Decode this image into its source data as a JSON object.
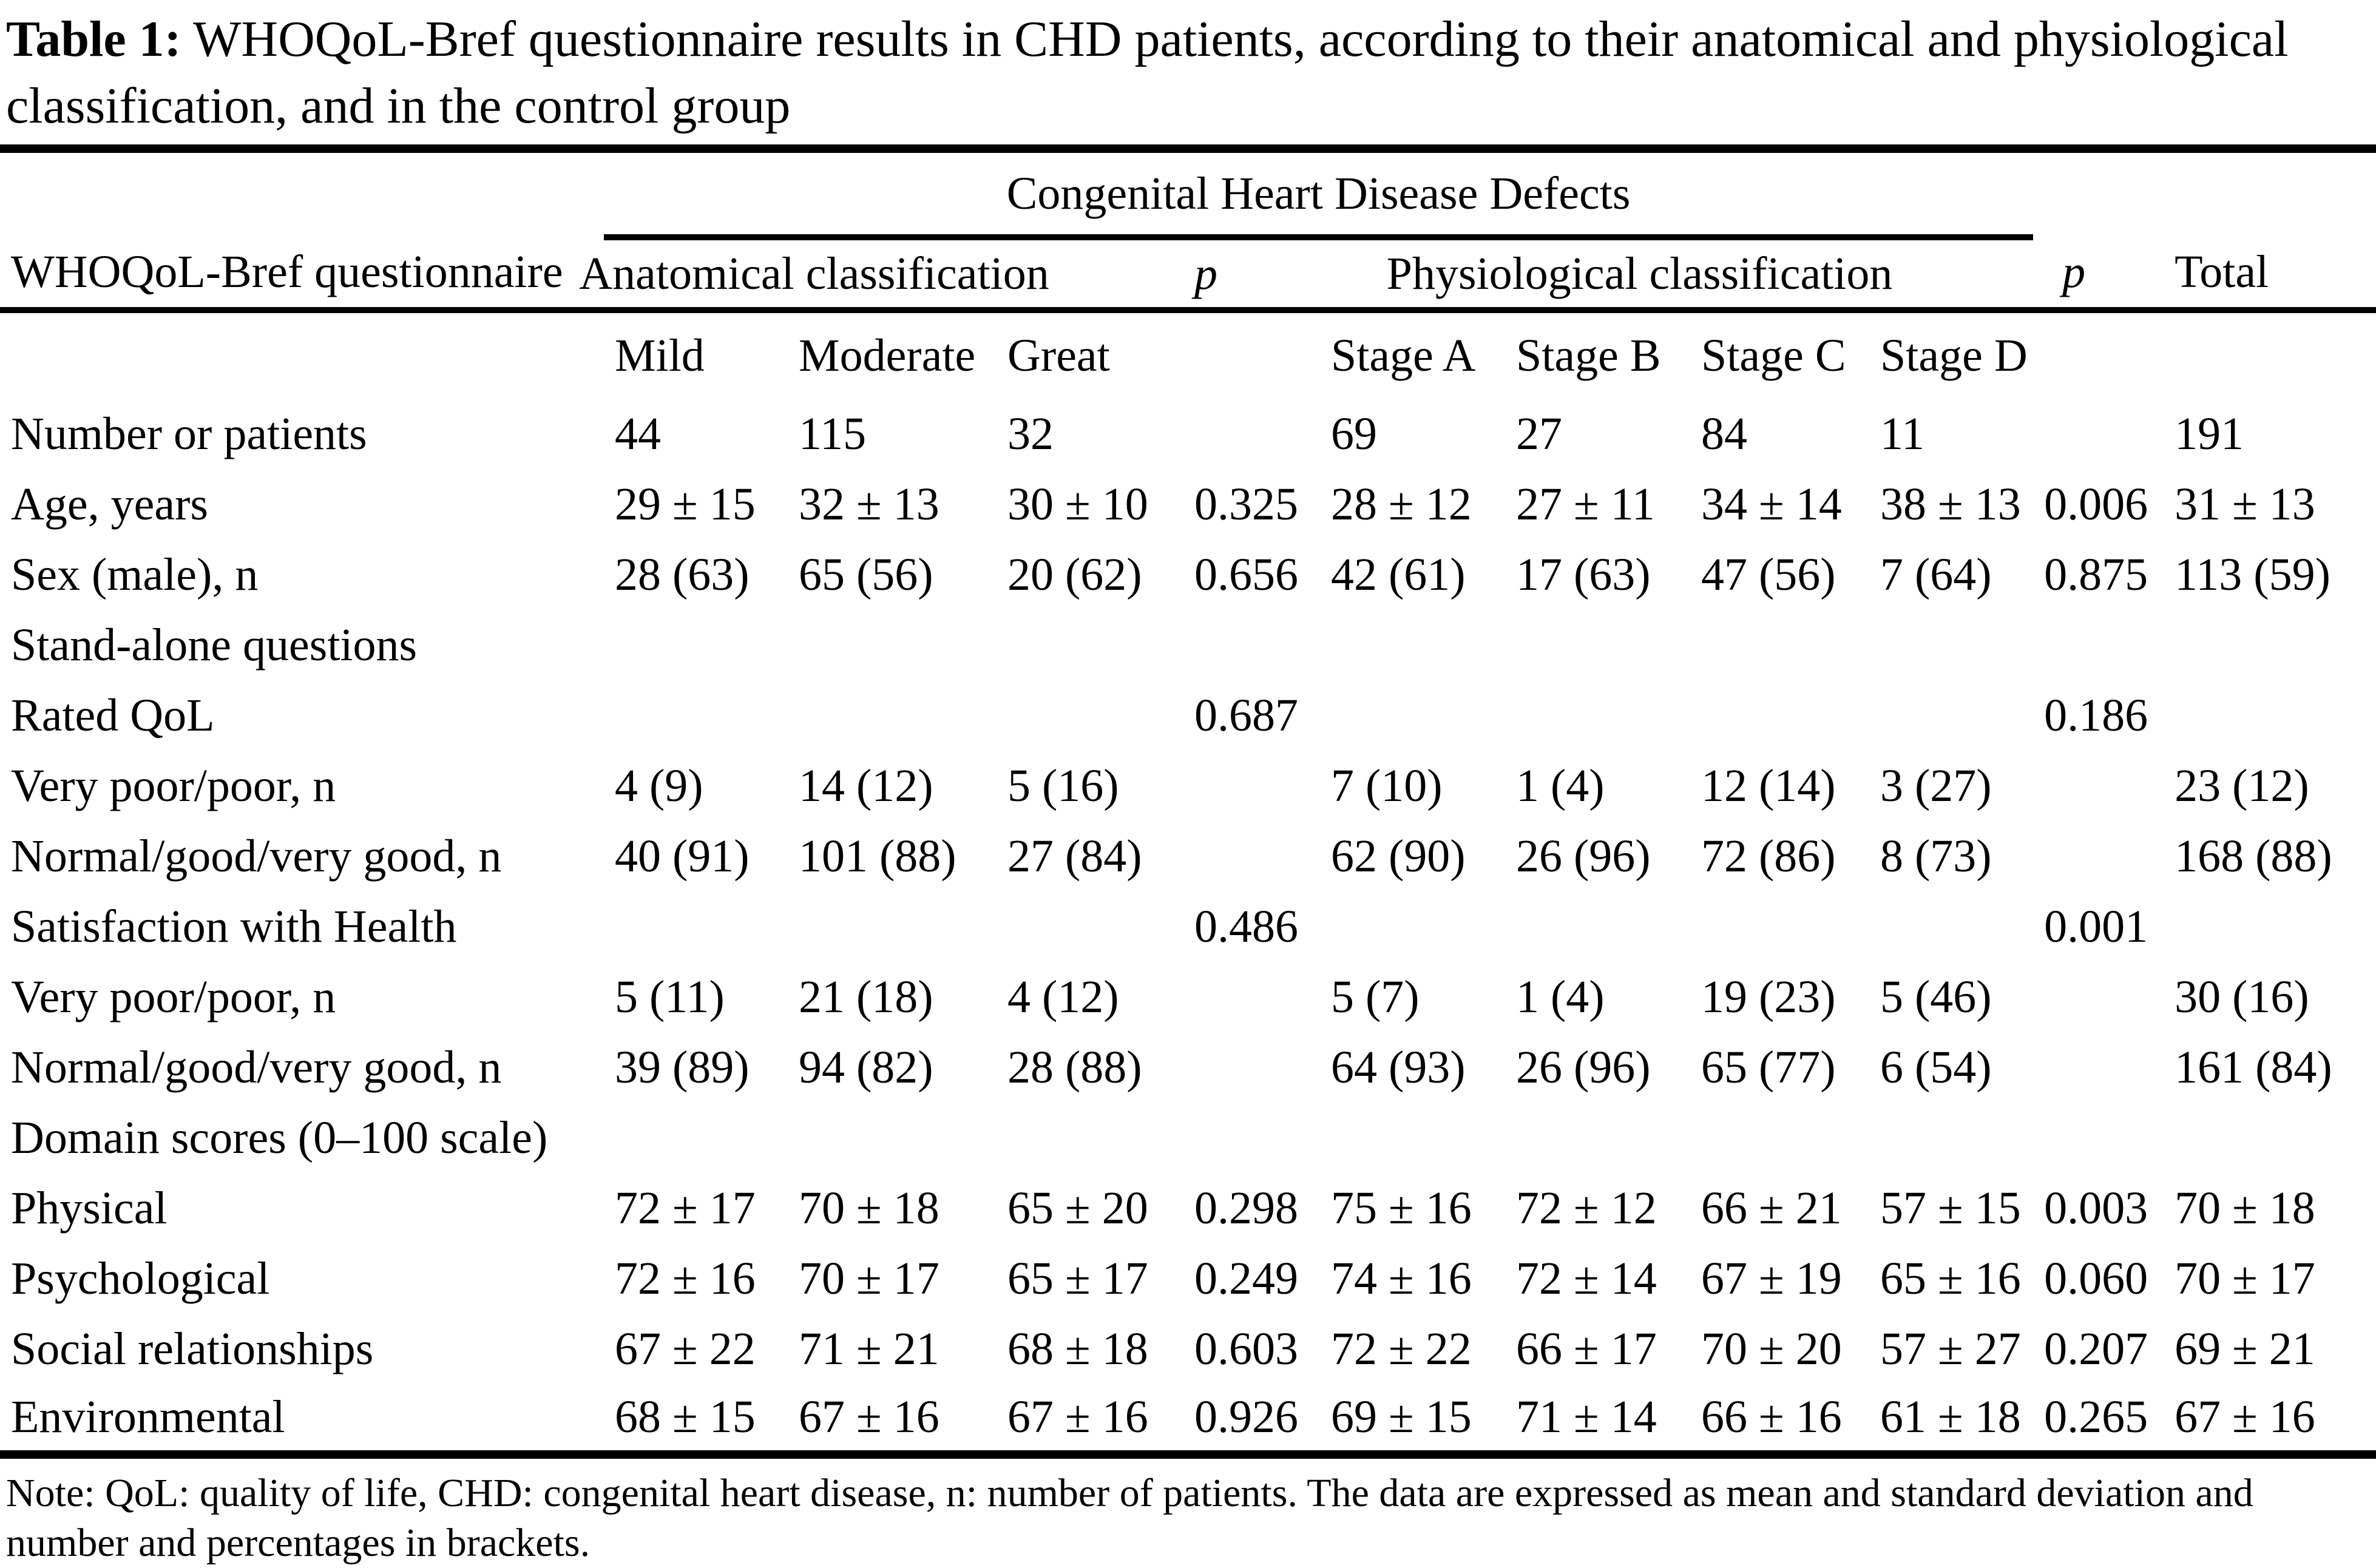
{
  "title": {
    "label": "Table 1:",
    "text": "WHOQoL-Bref questionnaire results in CHD patients, according to their anatomical and physiological classification, and in the control group"
  },
  "table": {
    "group_header": "Congenital Heart Disease Defects",
    "columns": {
      "stub": "WHOQoL-Bref questionnaire",
      "anatomical": "Anatomical classification",
      "p1": "p",
      "physiological": "Physiological classification",
      "p2": "p",
      "total": "Total",
      "sub": [
        "Mild",
        "Moderate",
        "Great",
        "Stage A",
        "Stage B",
        "Stage C",
        "Stage D"
      ]
    },
    "rows": [
      {
        "label": "Number or patients",
        "cells": [
          "44",
          "115",
          "32",
          "",
          "69",
          "27",
          "84",
          "11",
          "",
          "191"
        ]
      },
      {
        "label": "Age, years",
        "cells": [
          "29 ± 15",
          "32 ± 13",
          "30 ± 10",
          "0.325",
          "28 ± 12",
          "27 ± 11",
          "34 ± 14",
          "38 ± 13",
          "0.006",
          "31 ± 13"
        ]
      },
      {
        "label": "Sex (male), n",
        "cells": [
          "28 (63)",
          "65 (56)",
          "20 (62)",
          "0.656",
          "42 (61)",
          "17 (63)",
          "47 (56)",
          "7 (64)",
          "0.875",
          "113 (59)"
        ]
      },
      {
        "label": "Stand-alone questions",
        "cells": [
          "",
          "",
          "",
          "",
          "",
          "",
          "",
          "",
          "",
          ""
        ]
      },
      {
        "label": "Rated QoL",
        "cells": [
          "",
          "",
          "",
          "0.687",
          "",
          "",
          "",
          "",
          "0.186",
          ""
        ]
      },
      {
        "label": "Very poor/poor, n",
        "cells": [
          "4 (9)",
          "14 (12)",
          "5 (16)",
          "",
          "7 (10)",
          "1 (4)",
          "12 (14)",
          "3 (27)",
          "",
          "23 (12)"
        ]
      },
      {
        "label": "Normal/good/very good, n",
        "cells": [
          "40 (91)",
          "101 (88)",
          "27 (84)",
          "",
          "62 (90)",
          "26 (96)",
          "72 (86)",
          "8 (73)",
          "",
          "168 (88)"
        ]
      },
      {
        "label": "Satisfaction with Health",
        "cells": [
          "",
          "",
          "",
          "0.486",
          "",
          "",
          "",
          "",
          "0.001",
          ""
        ]
      },
      {
        "label": "Very poor/poor, n",
        "cells": [
          "5 (11)",
          "21 (18)",
          "4 (12)",
          "",
          "5 (7)",
          "1 (4)",
          "19 (23)",
          "5 (46)",
          "",
          "30 (16)"
        ]
      },
      {
        "label": "Normal/good/very good, n",
        "cells": [
          "39 (89)",
          "94 (82)",
          "28 (88)",
          "",
          "64 (93)",
          "26 (96)",
          "65 (77)",
          "6 (54)",
          "",
          "161 (84)"
        ]
      },
      {
        "label": "Domain scores (0–100 scale)",
        "cells": [
          "",
          "",
          "",
          "",
          "",
          "",
          "",
          "",
          "",
          ""
        ]
      },
      {
        "label": "Physical",
        "cells": [
          "72 ± 17",
          "70 ± 18",
          "65 ± 20",
          "0.298",
          "75 ± 16",
          "72 ± 12",
          "66 ± 21",
          "57 ± 15",
          "0.003",
          "70 ± 18"
        ]
      },
      {
        "label": "Psychological",
        "cells": [
          "72 ± 16",
          "70 ± 17",
          "65 ± 17",
          "0.249",
          "74 ± 16",
          "72 ± 14",
          "67 ± 19",
          "65 ± 16",
          "0.060",
          "70 ± 17"
        ]
      },
      {
        "label": "Social relationships",
        "cells": [
          "67 ± 22",
          "71 ± 21",
          "68 ± 18",
          "0.603",
          "72 ± 22",
          "66 ± 17",
          "70 ± 20",
          "57 ± 27",
          "0.207",
          "69 ± 21"
        ]
      },
      {
        "label": "Environmental",
        "cells": [
          "68 ± 15",
          "67 ± 16",
          "67 ± 16",
          "0.926",
          "69 ± 15",
          "71 ± 14",
          "66 ± 16",
          "61 ± 18",
          "0.265",
          "67 ± 16"
        ]
      }
    ]
  },
  "note": "Note: QoL: quality of life, CHD: congenital heart disease, n: number of patients. The data are expressed as mean and standard deviation and number and percentages in brackets.",
  "colors": {
    "text": "#000000",
    "background": "#ffffff",
    "rule": "#000000"
  }
}
